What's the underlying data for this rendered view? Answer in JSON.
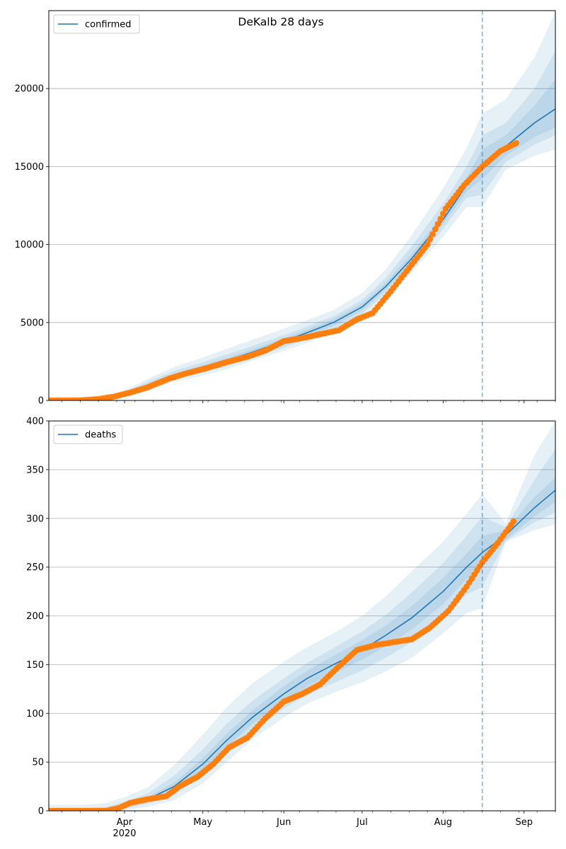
{
  "title": "DeKalb 28 days",
  "colors": {
    "model": "#1f77b4",
    "observed": "#ff7f0e",
    "band": "#1f77b4",
    "forecast_line": "#1f77b4",
    "grid": "#b0b0b0"
  },
  "x_axis": {
    "start_date": "2020-03-03",
    "end_date": "2020-09-13",
    "month_ticks": [
      {
        "date": "2020-04-01",
        "label": "Apr",
        "sublabel": "2020"
      },
      {
        "date": "2020-05-01",
        "label": "May",
        "sublabel": ""
      },
      {
        "date": "2020-06-01",
        "label": "Jun",
        "sublabel": ""
      },
      {
        "date": "2020-07-01",
        "label": "Jul",
        "sublabel": ""
      },
      {
        "date": "2020-08-01",
        "label": "Aug",
        "sublabel": ""
      },
      {
        "date": "2020-09-01",
        "label": "Sep",
        "sublabel": ""
      }
    ],
    "forecast_start": "2020-08-16"
  },
  "chart_data": [
    {
      "type": "line",
      "legend": "confirmed",
      "legend_position": "top-left",
      "grid": "y",
      "ylim": [
        0,
        25000
      ],
      "yticks": [
        0,
        5000,
        10000,
        15000,
        20000
      ],
      "model": {
        "x": [
          "2020-03-03",
          "2020-03-15",
          "2020-03-25",
          "2020-04-01",
          "2020-04-10",
          "2020-04-20",
          "2020-05-01",
          "2020-05-10",
          "2020-05-20",
          "2020-06-01",
          "2020-06-10",
          "2020-06-20",
          "2020-07-01",
          "2020-07-10",
          "2020-07-20",
          "2020-08-01",
          "2020-08-10",
          "2020-08-16",
          "2020-08-25",
          "2020-09-05",
          "2020-09-13"
        ],
        "y": [
          0,
          30,
          120,
          400,
          1000,
          1600,
          2100,
          2550,
          3100,
          3800,
          4350,
          5000,
          6000,
          7300,
          9100,
          11600,
          13800,
          15100,
          16300,
          17800,
          18700
        ]
      },
      "bands": [
        {
          "level": "outer",
          "lower": [
            0,
            10,
            60,
            250,
            700,
            1200,
            1600,
            2000,
            2550,
            3200,
            3700,
            4300,
            5300,
            6500,
            8200,
            10500,
            12400,
            12400,
            14800,
            15700,
            16100
          ],
          "upper": [
            50,
            100,
            250,
            650,
            1400,
            2150,
            2750,
            3300,
            3900,
            4600,
            5150,
            5800,
            6900,
            8400,
            10600,
            13600,
            16200,
            18400,
            19300,
            22000,
            24900
          ]
        },
        {
          "level": "middle",
          "lower": [
            0,
            15,
            80,
            300,
            800,
            1350,
            1800,
            2200,
            2750,
            3400,
            3950,
            4550,
            5550,
            6850,
            8600,
            11000,
            13000,
            13200,
            15300,
            16400,
            17000
          ],
          "upper": [
            30,
            70,
            190,
            520,
            1220,
            1900,
            2450,
            2950,
            3500,
            4200,
            4750,
            5400,
            6450,
            7850,
            9900,
            12600,
            15000,
            17000,
            17800,
            20000,
            22400
          ]
        },
        {
          "level": "inner",
          "lower": [
            0,
            20,
            100,
            350,
            900,
            1480,
            1950,
            2380,
            2930,
            3600,
            4150,
            4780,
            5780,
            7080,
            8850,
            11300,
            13400,
            14200,
            15700,
            16900,
            17500
          ],
          "upper": [
            15,
            50,
            150,
            460,
            1100,
            1720,
            2250,
            2720,
            3280,
            4000,
            4550,
            5220,
            6220,
            7550,
            9400,
            11950,
            14300,
            16100,
            17000,
            18900,
            20600
          ]
        }
      ],
      "observed": {
        "x": [
          "2020-03-03",
          "2020-03-15",
          "2020-03-22",
          "2020-03-28",
          "2020-04-03",
          "2020-04-10",
          "2020-04-18",
          "2020-04-25",
          "2020-05-03",
          "2020-05-10",
          "2020-05-18",
          "2020-05-25",
          "2020-06-01",
          "2020-06-08",
          "2020-06-15",
          "2020-06-22",
          "2020-06-29",
          "2020-07-05",
          "2020-07-12",
          "2020-07-19",
          "2020-07-26",
          "2020-08-02",
          "2020-08-09",
          "2020-08-16",
          "2020-08-23",
          "2020-08-29"
        ],
        "y": [
          0,
          10,
          90,
          250,
          500,
          850,
          1400,
          1750,
          2100,
          2450,
          2800,
          3200,
          3800,
          4000,
          4250,
          4500,
          5200,
          5600,
          7000,
          8500,
          10000,
          12300,
          13800,
          15000,
          16000,
          16500
        ]
      }
    },
    {
      "type": "line",
      "legend": "deaths",
      "legend_position": "top-left",
      "grid": "y",
      "ylim": [
        0,
        400
      ],
      "yticks": [
        0,
        50,
        100,
        150,
        200,
        250,
        300,
        350,
        400
      ],
      "model": {
        "x": [
          "2020-03-03",
          "2020-03-15",
          "2020-03-25",
          "2020-04-01",
          "2020-04-10",
          "2020-04-20",
          "2020-05-01",
          "2020-05-10",
          "2020-05-20",
          "2020-06-01",
          "2020-06-10",
          "2020-06-20",
          "2020-07-01",
          "2020-07-10",
          "2020-07-20",
          "2020-08-01",
          "2020-08-10",
          "2020-08-16",
          "2020-08-25",
          "2020-09-05",
          "2020-09-13"
        ],
        "y": [
          0,
          0,
          1,
          5,
          12,
          25,
          48,
          72,
          96,
          120,
          136,
          150,
          165,
          180,
          198,
          225,
          250,
          265,
          283,
          311,
          329
        ]
      },
      "bands": [
        {
          "level": "outer",
          "lower": [
            0,
            0,
            0,
            1,
            4,
            11,
            28,
            50,
            73,
            96,
            110,
            121,
            132,
            143,
            157,
            182,
            203,
            208,
            276,
            288,
            294
          ]
        },
        {
          "level": "middle",
          "lower": [
            0,
            0,
            0,
            2,
            7,
            16,
            36,
            58,
            82,
            105,
            119,
            131,
            144,
            157,
            173,
            198,
            222,
            230,
            277,
            296,
            306
          ]
        },
        {
          "level": "inner",
          "lower": [
            0,
            0,
            1,
            4,
            10,
            21,
            42,
            65,
            89,
            112,
            128,
            141,
            155,
            169,
            186,
            212,
            238,
            250,
            278,
            302,
            317
          ]
        }
      ],
      "band_uppers": [
        [
          6,
          6,
          8,
          14,
          24,
          47,
          78,
          106,
          131,
          153,
          168,
          182,
          200,
          220,
          246,
          276,
          305,
          325,
          295,
          365,
          400
        ],
        [
          3,
          3,
          4,
          9,
          18,
          36,
          63,
          89,
          113,
          136,
          152,
          167,
          184,
          201,
          224,
          254,
          282,
          302,
          291,
          340,
          371
        ],
        [
          1,
          1,
          2,
          6,
          14,
          29,
          54,
          79,
          103,
          128,
          144,
          159,
          175,
          190,
          210,
          239,
          264,
          282,
          288,
          322,
          342
        ]
      ],
      "observed": {
        "x": [
          "2020-03-03",
          "2020-03-25",
          "2020-03-30",
          "2020-04-03",
          "2020-04-10",
          "2020-04-17",
          "2020-04-22",
          "2020-04-29",
          "2020-05-05",
          "2020-05-11",
          "2020-05-18",
          "2020-05-25",
          "2020-06-01",
          "2020-06-08",
          "2020-06-15",
          "2020-06-22",
          "2020-06-29",
          "2020-07-06",
          "2020-07-13",
          "2020-07-20",
          "2020-07-27",
          "2020-08-03",
          "2020-08-10",
          "2020-08-16",
          "2020-08-22",
          "2020-08-28"
        ],
        "y": [
          0,
          0,
          3,
          8,
          12,
          15,
          25,
          35,
          48,
          65,
          75,
          95,
          112,
          120,
          130,
          148,
          165,
          170,
          173,
          176,
          188,
          205,
          230,
          255,
          275,
          297
        ]
      }
    }
  ]
}
